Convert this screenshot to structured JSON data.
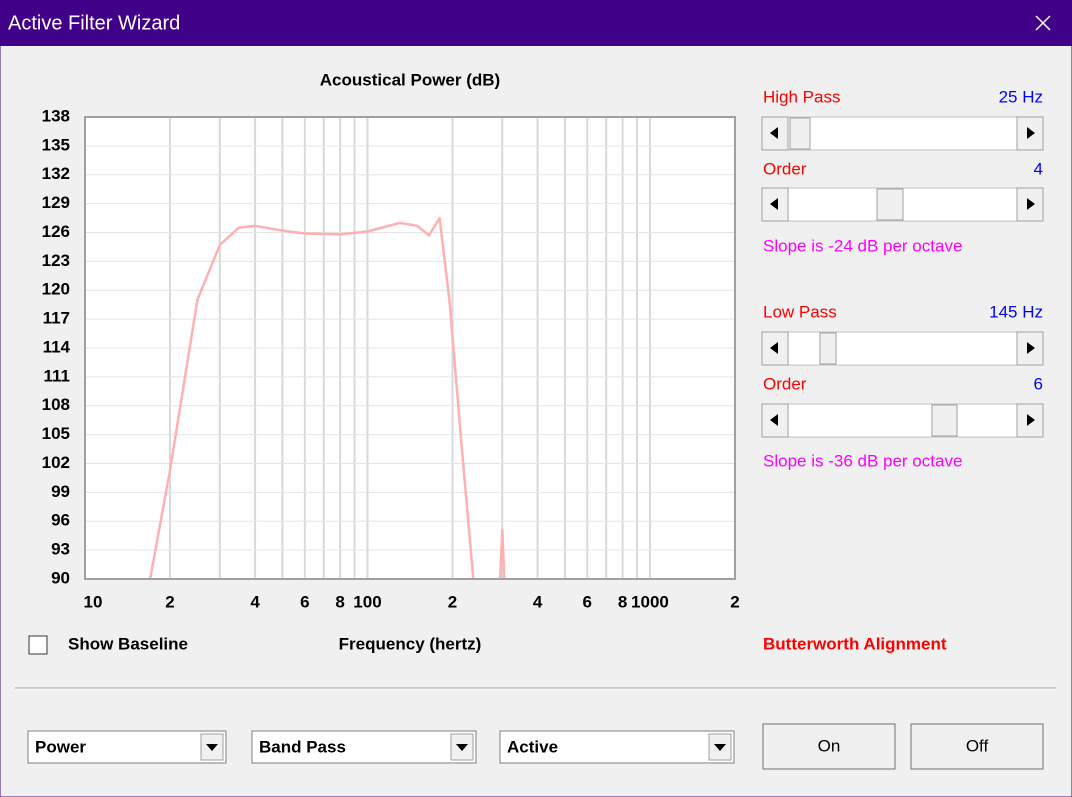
{
  "window": {
    "title": "Active Filter Wizard"
  },
  "chart_data": {
    "type": "line",
    "title": "Acoustical Power (dB)",
    "x_label": "Frequency (hertz)",
    "x_scale": "log",
    "x": [
      17,
      20,
      25,
      30,
      35,
      40,
      50,
      60,
      80,
      100,
      130,
      150,
      165,
      180,
      195,
      216,
      237,
      270,
      295,
      300,
      305
    ],
    "values": [
      90,
      101.3,
      119,
      124.7,
      126.5,
      126.7,
      126.2,
      125.9,
      125.8,
      126.1,
      127,
      126.7,
      125.7,
      127.5,
      119,
      103.4,
      90,
      null,
      90,
      95.1,
      90
    ],
    "color": "#ffb0b0",
    "xlim": [
      10,
      2000
    ],
    "xticks": [
      10,
      {
        "value": 20,
        "label": "2"
      },
      {
        "value": 40,
        "label": "4"
      },
      {
        "value": 60,
        "label": "6"
      },
      {
        "value": 80,
        "label": "8"
      },
      100,
      {
        "value": 200,
        "label": "2"
      },
      {
        "value": 400,
        "label": "4"
      },
      {
        "value": 600,
        "label": "6"
      },
      {
        "value": 800,
        "label": "8"
      },
      1000,
      {
        "value": 2000,
        "label": "2"
      }
    ],
    "xgrid": [
      20,
      30,
      40,
      50,
      60,
      70,
      80,
      90,
      100,
      200,
      300,
      400,
      500,
      600,
      700,
      800,
      900,
      1000
    ],
    "ylim": [
      90,
      138
    ],
    "yticks": [
      90,
      93,
      96,
      99,
      102,
      105,
      108,
      111,
      114,
      117,
      120,
      123,
      126,
      129,
      132,
      135,
      138
    ],
    "grid": true
  },
  "controls": {
    "high_pass": {
      "label": "High Pass",
      "value": "25 Hz",
      "order_label": "Order",
      "order": "4",
      "slope": "Slope is -24 dB per octave"
    },
    "low_pass": {
      "label": "Low Pass",
      "value": "145 Hz",
      "order_label": "Order",
      "order": "6",
      "slope": "Slope is -36 dB per octave"
    },
    "show_baseline": "Show Baseline",
    "alignment": "Butterworth Alignment",
    "dropdowns": [
      "Power",
      "Band Pass",
      "Active"
    ],
    "buttons": [
      "On",
      "Off"
    ]
  }
}
